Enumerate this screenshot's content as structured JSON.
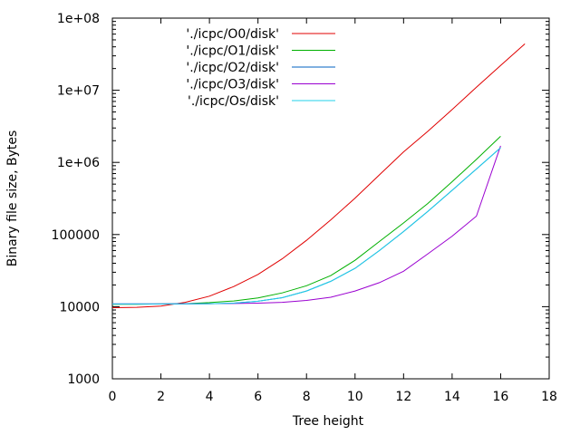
{
  "chart_data": {
    "type": "line",
    "xlabel": "Tree height",
    "ylabel": "Binary file size, Bytes",
    "xlim": [
      0,
      18
    ],
    "ylim": [
      1000,
      100000000
    ],
    "yscale": "log",
    "x_ticks": [
      0,
      2,
      4,
      6,
      8,
      10,
      12,
      14,
      16,
      18
    ],
    "x_tick_labels": [
      "0",
      "2",
      "4",
      "6",
      "8",
      "10",
      "12",
      "14",
      "16",
      "18"
    ],
    "y_ticks": [
      1000,
      10000,
      100000,
      1000000,
      10000000,
      100000000
    ],
    "y_tick_labels": [
      "1000",
      "10000",
      "100000",
      "1e+06",
      "1e+07",
      "1e+08"
    ],
    "grid": false,
    "legend_position": "top-center",
    "series": [
      {
        "name": "'./icpc/O0/disk'",
        "color": "#e00000",
        "x": [
          0,
          1,
          2,
          3,
          4,
          5,
          6,
          7,
          8,
          9,
          10,
          11,
          12,
          13,
          14,
          15,
          16,
          17
        ],
        "values": [
          9700,
          9800,
          10200,
          11500,
          14000,
          19000,
          28000,
          46000,
          83000,
          160000,
          320000,
          670000,
          1400000,
          2700000,
          5400000,
          11000000,
          22000000,
          44000000
        ]
      },
      {
        "name": "'./icpc/O1/disk'",
        "color": "#00b000",
        "x": [
          0,
          1,
          2,
          3,
          4,
          5,
          6,
          7,
          8,
          9,
          10,
          11,
          12,
          13,
          14,
          15,
          16
        ],
        "values": [
          10800,
          10800,
          10900,
          11000,
          11400,
          12000,
          13200,
          15500,
          19500,
          27000,
          44000,
          80000,
          145000,
          270000,
          540000,
          1100000,
          2300000
        ]
      },
      {
        "name": "'./icpc/O2/disk'",
        "color": "#0060c0",
        "x": [
          0,
          1,
          2,
          3,
          4,
          5,
          6,
          7,
          8,
          9,
          10,
          11,
          12,
          13,
          14,
          15,
          16
        ],
        "values": [
          10900,
          10900,
          10900,
          10950,
          11000,
          11200,
          11900,
          13300,
          16500,
          22500,
          34000,
          60000,
          110000,
          210000,
          410000,
          810000,
          1600000
        ]
      },
      {
        "name": "'./icpc/O3/disk'",
        "color": "#9a00d0",
        "x": [
          0,
          1,
          2,
          3,
          4,
          5,
          6,
          7,
          8,
          9,
          10,
          11,
          12,
          13,
          14,
          15,
          16
        ],
        "values": [
          10900,
          10900,
          10900,
          10950,
          11000,
          11050,
          11200,
          11500,
          12200,
          13500,
          16500,
          21500,
          31000,
          54000,
          95000,
          180000,
          1700000
        ]
      },
      {
        "name": "'./icpc/Os/disk'",
        "color": "#20d0e8",
        "x": [
          0,
          1,
          2,
          3,
          4,
          5,
          6,
          7,
          8,
          9,
          10,
          11,
          12,
          13,
          14,
          15,
          16
        ],
        "values": [
          10900,
          10900,
          10900,
          10950,
          11000,
          11200,
          11900,
          13300,
          16500,
          22500,
          34000,
          60000,
          110000,
          210000,
          410000,
          810000,
          1600000
        ]
      }
    ]
  }
}
